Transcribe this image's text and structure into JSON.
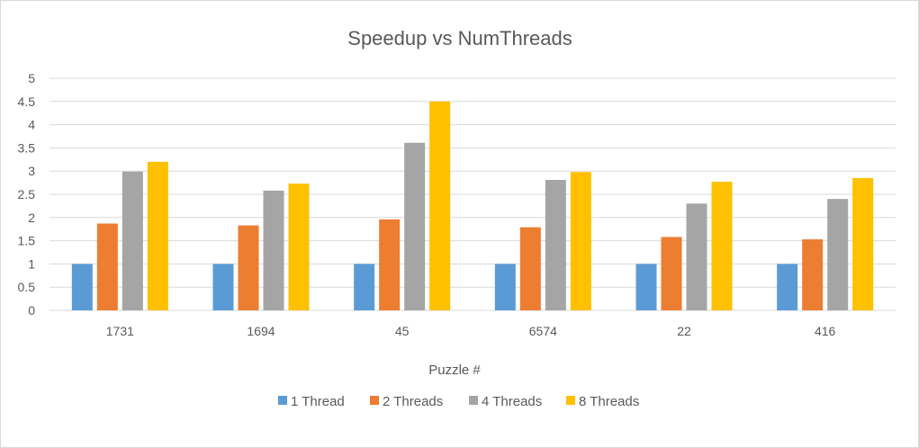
{
  "chart_data": {
    "type": "bar",
    "title": "Speedup vs NumThreads",
    "xlabel": "Puzzle #",
    "ylabel": "",
    "categories": [
      "1731",
      "1694",
      "45",
      "6574",
      "22",
      "416"
    ],
    "ylim": [
      0,
      5
    ],
    "yticks": [
      "0",
      "0.5",
      "1",
      "1.5",
      "2",
      "2.5",
      "3",
      "3.5",
      "4",
      "4.5",
      "5"
    ],
    "grid": true,
    "legend_position": "bottom",
    "series": [
      {
        "name": "1 Thread",
        "color": "#5b9bd5",
        "values": [
          1,
          1,
          1,
          1,
          1,
          1
        ]
      },
      {
        "name": "2 Threads",
        "color": "#ed7d31",
        "values": [
          1.87,
          1.83,
          1.96,
          1.79,
          1.58,
          1.53
        ]
      },
      {
        "name": "4 Threads",
        "color": "#a5a5a5",
        "values": [
          2.99,
          2.58,
          3.61,
          2.81,
          2.3,
          2.4
        ]
      },
      {
        "name": "8 Threads",
        "color": "#ffc000",
        "values": [
          3.2,
          2.73,
          4.5,
          2.98,
          2.77,
          2.85
        ]
      }
    ]
  }
}
